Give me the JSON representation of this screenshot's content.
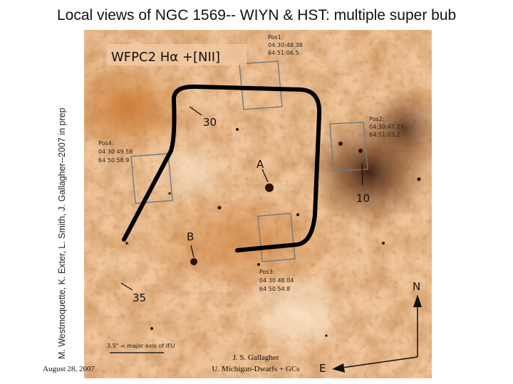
{
  "title": "Local views of NGC 1569-- WIYN & HST: multiple super bub",
  "credit": "M. Westmoquette, K. Exter, L. Smith, J. Gallagher--2007 in prep",
  "figure": {
    "filter_label": "WFPC2 Hα +[NII]",
    "positions": [
      {
        "name": "Pos1:",
        "ra": "04:30:48.38",
        "dec": "64:51:06.5"
      },
      {
        "name": "Pos2:",
        "ra": "04:30:47.27",
        "dec": "64:51:03.2"
      },
      {
        "name": "Pos3:",
        "ra": "04 30 48.04",
        "dec": "64 50 54.8"
      },
      {
        "name": "Pos4:",
        "ra": "04 30 49.58",
        "dec": "64 50 58.9"
      }
    ],
    "labels": {
      "a": "A",
      "b": "B",
      "n30": "30",
      "n10": "10",
      "n35": "35"
    },
    "scale_note": "3.5\" = major axis of IFU",
    "compass": {
      "north": "N",
      "east": "E"
    },
    "footer_author": "J. S. Gallagher",
    "footer_affiliation": "U. Michigan-Dwarfs + GCs"
  },
  "date": "August 28, 2007"
}
